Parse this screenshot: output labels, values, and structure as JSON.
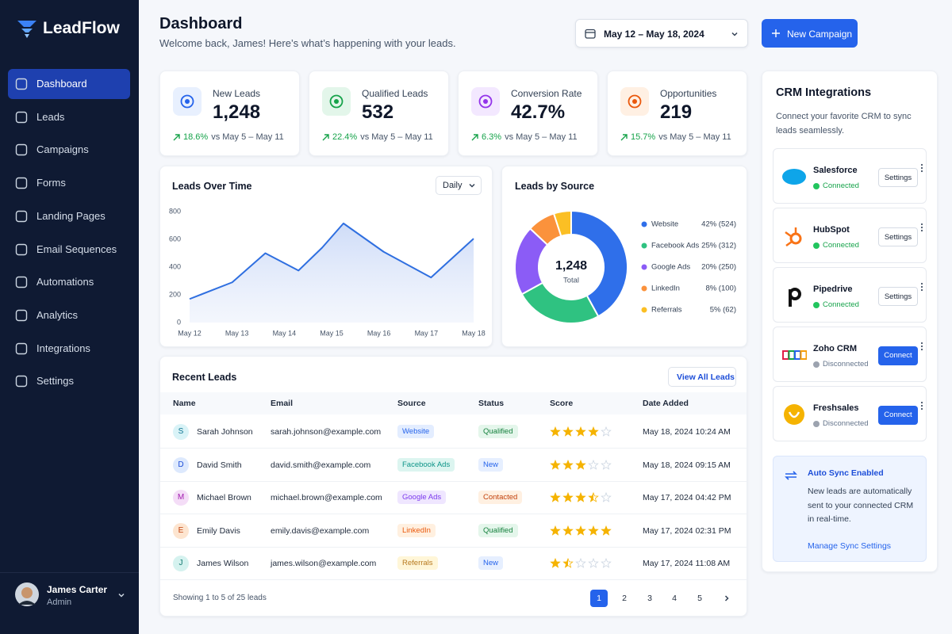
{
  "brand": "LeadFlow",
  "nav": [
    "Dashboard",
    "Leads",
    "Campaigns",
    "Forms",
    "Landing Pages",
    "Email Sequences",
    "Automations",
    "Analytics",
    "Integrations",
    "Settings"
  ],
  "user": {
    "name": "James Carter",
    "role": "Admin"
  },
  "header": {
    "title": "Dashboard",
    "subtitle": "Welcome back, James! Here’s what’s happening with your leads.",
    "date_range": "May 12 – May 18, 2024",
    "button": "New Campaign"
  },
  "stats": [
    {
      "label": "New Leads",
      "value": "1,248",
      "change": "18.6%",
      "period": "vs May 5 – May 11"
    },
    {
      "label": "Qualified Leads",
      "value": "532",
      "change": "22.4%",
      "period": "vs May 5 – May 11"
    },
    {
      "label": "Conversion Rate",
      "value": "42.7%",
      "change": "6.3%",
      "period": "vs May 5 – May 11"
    },
    {
      "label": "Opportunities",
      "value": "219",
      "change": "15.7%",
      "period": "vs May 5 – May 11"
    }
  ],
  "chart_data": [
    {
      "type": "line",
      "title": "Leads Over Time",
      "interval": "Daily",
      "x": [
        0,
        0.9,
        1.6,
        2.3,
        2.8,
        3.25,
        4.1,
        5.1,
        6
      ],
      "values": [
        170,
        290,
        500,
        375,
        540,
        715,
        510,
        325,
        605
      ],
      "color": "#2f6fe0",
      "xlim": [
        0,
        6
      ],
      "xticks": [
        {
          "value": 0,
          "label": "May 12"
        },
        {
          "value": 1,
          "label": "May 13"
        },
        {
          "value": 2,
          "label": "May 14"
        },
        {
          "value": 3,
          "label": "May 15"
        },
        {
          "value": 4,
          "label": "May 16"
        },
        {
          "value": 5,
          "label": "May 17"
        },
        {
          "value": 6,
          "label": "May 18"
        }
      ],
      "ylim": [
        0,
        800
      ],
      "yticks": [
        0,
        200,
        400,
        600,
        800
      ],
      "grid": false
    },
    {
      "type": "pie",
      "title": "Leads by Source",
      "categories": [
        "Website",
        "Facebook Ads",
        "Google Ads",
        "LinkedIn",
        "Referrals"
      ],
      "values": [
        42,
        25,
        20,
        8,
        5
      ],
      "value_labels": [
        "42% (524)",
        "25% (312)",
        "20% (250)",
        "8% (100)",
        "5% (62)"
      ],
      "colors": [
        "#2f6fea",
        "#2fc281",
        "#8b5cf6",
        "#fb923c",
        "#fbbf24"
      ],
      "center_value": "1,248",
      "center_label": "Total"
    }
  ],
  "recent_leads": {
    "title": "Recent Leads",
    "button": "View All Leads",
    "columns": [
      "Name",
      "Email",
      "Source",
      "Status",
      "Score",
      "Date Added"
    ],
    "rows": [
      {
        "initial": "S",
        "name": "Sarah Johnson",
        "email": "sarah.johnson@example.com",
        "source": "Website",
        "status": "Qualified",
        "score": 4,
        "date": "May 18, 2024 10:24 AM"
      },
      {
        "initial": "D",
        "name": "David Smith",
        "email": "david.smith@example.com",
        "source": "Facebook Ads",
        "status": "New",
        "score": 3,
        "date": "May 18, 2024 09:15 AM"
      },
      {
        "initial": "M",
        "name": "Michael Brown",
        "email": "michael.brown@example.com",
        "source": "Google Ads",
        "status": "Contacted",
        "score": 3.5,
        "date": "May 17, 2024 04:42 PM"
      },
      {
        "initial": "E",
        "name": "Emily Davis",
        "email": "emily.davis@example.com",
        "source": "LinkedIn",
        "status": "Qualified",
        "score": 5,
        "date": "May 17, 2024 02:31 PM"
      },
      {
        "initial": "J",
        "name": "James Wilson",
        "email": "james.wilson@example.com",
        "source": "Referrals",
        "status": "New",
        "score": 1.5,
        "date": "May 17, 2024 11:08 AM"
      }
    ],
    "footer": "Showing 1 to 5 of 25 leads",
    "pages": [
      1,
      2,
      3,
      4,
      5
    ]
  },
  "crm": {
    "title": "CRM Integrations",
    "description": "Connect your favorite CRM to sync leads seamlessly.",
    "items": [
      {
        "name": "Salesforce",
        "status": "Connected",
        "action": "Settings"
      },
      {
        "name": "HubSpot",
        "status": "Connected",
        "action": "Settings"
      },
      {
        "name": "Pipedrive",
        "status": "Connected",
        "action": "Settings"
      },
      {
        "name": "Zoho CRM",
        "status": "Disconnected",
        "action": "Connect"
      },
      {
        "name": "Freshsales",
        "status": "Disconnected",
        "action": "Connect"
      }
    ],
    "sync": {
      "title": "Auto Sync Enabled",
      "text": "New leads are automatically sent to your connected CRM in real-time.",
      "link": "Manage Sync Settings"
    }
  }
}
